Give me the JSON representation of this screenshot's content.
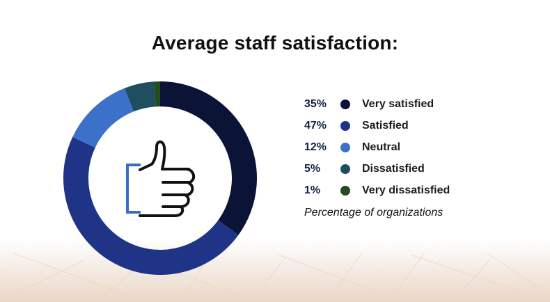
{
  "header": {
    "title": "Average staff satisfaction:"
  },
  "chart_data": {
    "type": "pie",
    "categories": [
      "Very satisfied",
      "Satisfied",
      "Neutral",
      "Dissatisfied",
      "Very dissatisfied"
    ],
    "values": [
      35,
      47,
      12,
      5,
      1
    ],
    "value_labels": [
      "35%",
      "47%",
      "12%",
      "5%",
      "1%"
    ],
    "colors": [
      "#0b1437",
      "#1f3487",
      "#3b71c9",
      "#1f4f5e",
      "#224d1d"
    ],
    "legend_placement": "right",
    "note": "Percentage of organizations"
  },
  "icons": {
    "center": "thumbs-up-icon"
  }
}
